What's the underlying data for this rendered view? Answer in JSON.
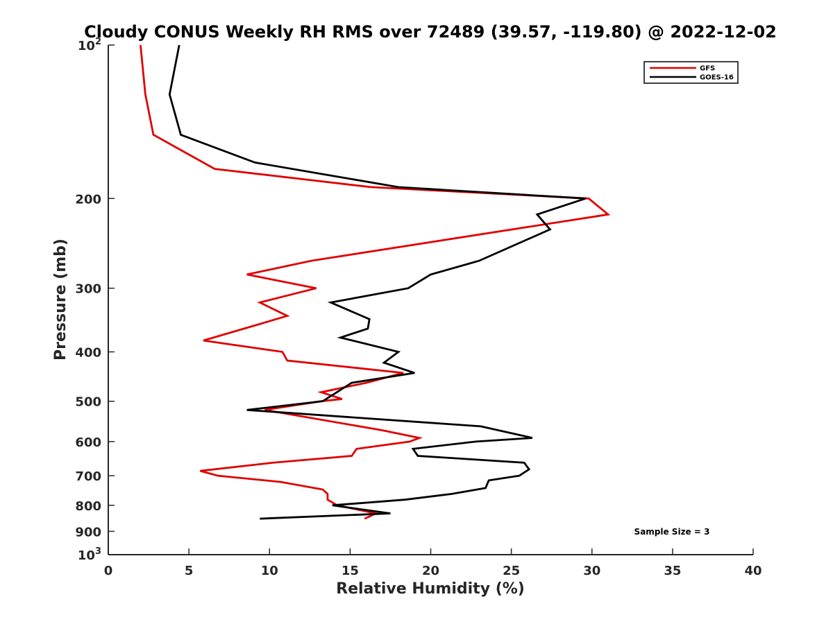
{
  "chart_data": {
    "type": "line",
    "title": "Cloudy CONUS Weekly RH RMS over 72489 (39.57, -119.80) @ 2022-12-02",
    "xlabel": "Relative Humidity (%)",
    "ylabel": "Pressure (mb)",
    "xlim": [
      0,
      40
    ],
    "ylim": [
      100,
      1000
    ],
    "y_scale": "log",
    "y_reversed": true,
    "x_ticks": [
      0,
      5,
      10,
      15,
      20,
      25,
      30,
      35,
      40
    ],
    "x_tick_labels": [
      "0",
      "5",
      "10",
      "15",
      "20",
      "25",
      "30",
      "35",
      "40"
    ],
    "y_ticks": [
      100,
      200,
      300,
      400,
      500,
      600,
      700,
      800,
      900,
      1000
    ],
    "y_tick_labels": [
      "10²",
      "200",
      "300",
      "400",
      "500",
      "600",
      "700",
      "800",
      "900",
      "10³"
    ],
    "grid": false,
    "legend_position": "top-right",
    "annotation": "Sample Size = 3",
    "series": [
      {
        "name": "GFS",
        "color": "#e00000",
        "points": [
          {
            "x": 2.0,
            "p": 100
          },
          {
            "x": 2.3,
            "p": 125
          },
          {
            "x": 2.8,
            "p": 150
          },
          {
            "x": 6.6,
            "p": 175
          },
          {
            "x": 16.3,
            "p": 190
          },
          {
            "x": 29.8,
            "p": 200
          },
          {
            "x": 31.0,
            "p": 215
          },
          {
            "x": 12.6,
            "p": 265
          },
          {
            "x": 8.6,
            "p": 282
          },
          {
            "x": 12.9,
            "p": 300
          },
          {
            "x": 9.4,
            "p": 320
          },
          {
            "x": 11.1,
            "p": 340
          },
          {
            "x": 9.1,
            "p": 355
          },
          {
            "x": 5.9,
            "p": 380
          },
          {
            "x": 10.8,
            "p": 400
          },
          {
            "x": 11.1,
            "p": 416
          },
          {
            "x": 18.3,
            "p": 440
          },
          {
            "x": 16.0,
            "p": 460
          },
          {
            "x": 13.2,
            "p": 480
          },
          {
            "x": 14.5,
            "p": 495
          },
          {
            "x": 13.2,
            "p": 500
          },
          {
            "x": 9.7,
            "p": 520
          },
          {
            "x": 17.0,
            "p": 570
          },
          {
            "x": 19.3,
            "p": 590
          },
          {
            "x": 18.7,
            "p": 600
          },
          {
            "x": 15.4,
            "p": 620
          },
          {
            "x": 15.1,
            "p": 640
          },
          {
            "x": 10.2,
            "p": 660
          },
          {
            "x": 5.7,
            "p": 685
          },
          {
            "x": 6.8,
            "p": 700
          },
          {
            "x": 10.7,
            "p": 720
          },
          {
            "x": 13.3,
            "p": 745
          },
          {
            "x": 13.6,
            "p": 760
          },
          {
            "x": 13.6,
            "p": 780
          },
          {
            "x": 14.2,
            "p": 800
          },
          {
            "x": 16.6,
            "p": 830
          },
          {
            "x": 15.9,
            "p": 850
          }
        ]
      },
      {
        "name": "GOES-16",
        "color": "#000000",
        "points": [
          {
            "x": 4.4,
            "p": 100
          },
          {
            "x": 3.8,
            "p": 125
          },
          {
            "x": 4.5,
            "p": 150
          },
          {
            "x": 9.1,
            "p": 170
          },
          {
            "x": 18.0,
            "p": 190
          },
          {
            "x": 29.6,
            "p": 200
          },
          {
            "x": 26.6,
            "p": 215
          },
          {
            "x": 27.4,
            "p": 230
          },
          {
            "x": 23.0,
            "p": 265
          },
          {
            "x": 20.0,
            "p": 282
          },
          {
            "x": 18.6,
            "p": 300
          },
          {
            "x": 13.8,
            "p": 320
          },
          {
            "x": 16.2,
            "p": 345
          },
          {
            "x": 16.1,
            "p": 360
          },
          {
            "x": 14.4,
            "p": 375
          },
          {
            "x": 18.0,
            "p": 400
          },
          {
            "x": 17.1,
            "p": 420
          },
          {
            "x": 19.0,
            "p": 440
          },
          {
            "x": 15.1,
            "p": 460
          },
          {
            "x": 13.3,
            "p": 500
          },
          {
            "x": 8.6,
            "p": 520
          },
          {
            "x": 23.1,
            "p": 560
          },
          {
            "x": 26.3,
            "p": 590
          },
          {
            "x": 22.8,
            "p": 600
          },
          {
            "x": 18.9,
            "p": 620
          },
          {
            "x": 19.2,
            "p": 640
          },
          {
            "x": 25.8,
            "p": 660
          },
          {
            "x": 26.1,
            "p": 680
          },
          {
            "x": 25.5,
            "p": 700
          },
          {
            "x": 23.6,
            "p": 715
          },
          {
            "x": 23.4,
            "p": 740
          },
          {
            "x": 21.3,
            "p": 760
          },
          {
            "x": 18.4,
            "p": 780
          },
          {
            "x": 13.9,
            "p": 800
          },
          {
            "x": 17.5,
            "p": 830
          },
          {
            "x": 9.4,
            "p": 850
          }
        ]
      }
    ]
  }
}
